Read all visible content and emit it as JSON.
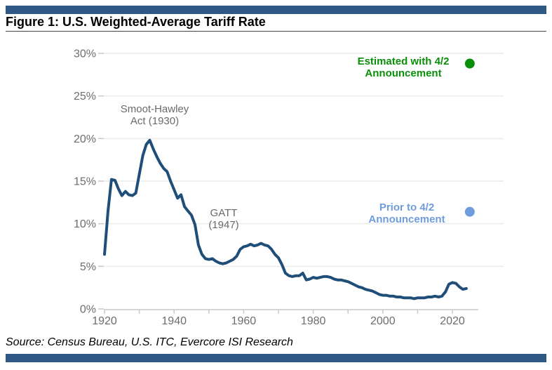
{
  "header": {
    "title": "Figure 1: U.S. Weighted-Average Tariff Rate"
  },
  "footer": {
    "source": "Source: Census Bureau, U.S. ITC, Evercore ISI Research"
  },
  "colors": {
    "divider_bar": "#2e5984",
    "line": "#1f4e79",
    "green": "#0a8f0a",
    "light_blue": "#6f9cdd",
    "gridline": "#ececec",
    "axis": "#c9c9c9",
    "label_gray": "#6d6d6d"
  },
  "chart_data": {
    "type": "line",
    "title": "U.S. Weighted-Average Tariff Rate",
    "x_axis": {
      "range": [
        1920,
        2027
      ],
      "tick_years": [
        1920,
        1930,
        1940,
        1950,
        1960,
        1970,
        1980,
        1990,
        2000,
        2010,
        2020
      ],
      "label_years": [
        1920,
        1940,
        1960,
        1980,
        2000,
        2020
      ],
      "labels": [
        "1920",
        "1940",
        "1960",
        "1980",
        "2000",
        "2020"
      ]
    },
    "y_axis": {
      "unit": "%",
      "range": [
        0,
        30
      ],
      "ticks": [
        0,
        5,
        10,
        15,
        20,
        25,
        30
      ],
      "tick_labels": [
        "0%",
        "5%",
        "10%",
        "15%",
        "20%",
        "25%",
        "30%"
      ],
      "gridlines": [
        5,
        10,
        15,
        20,
        25,
        30
      ]
    },
    "series": [
      {
        "name": "U.S. weighted-average tariff rate",
        "color": "#1f4e79",
        "years": [
          1920,
          1921,
          1922,
          1923,
          1924,
          1925,
          1926,
          1927,
          1928,
          1929,
          1930,
          1931,
          1932,
          1933,
          1934,
          1935,
          1936,
          1937,
          1938,
          1939,
          1940,
          1941,
          1942,
          1943,
          1944,
          1945,
          1946,
          1947,
          1948,
          1949,
          1950,
          1951,
          1952,
          1953,
          1954,
          1955,
          1956,
          1957,
          1958,
          1959,
          1960,
          1961,
          1962,
          1963,
          1964,
          1965,
          1966,
          1967,
          1968,
          1969,
          1970,
          1971,
          1972,
          1973,
          1974,
          1975,
          1976,
          1977,
          1978,
          1979,
          1980,
          1981,
          1982,
          1983,
          1984,
          1985,
          1986,
          1987,
          1988,
          1989,
          1990,
          1991,
          1992,
          1993,
          1994,
          1995,
          1996,
          1997,
          1998,
          1999,
          2000,
          2001,
          2002,
          2003,
          2004,
          2005,
          2006,
          2007,
          2008,
          2009,
          2010,
          2011,
          2012,
          2013,
          2014,
          2015,
          2016,
          2017,
          2018,
          2019,
          2020,
          2021,
          2022,
          2023,
          2024
        ],
        "values": [
          6.4,
          11.5,
          15.2,
          15.1,
          14.1,
          13.3,
          13.8,
          13.4,
          13.3,
          13.6,
          15.8,
          18.0,
          19.3,
          19.8,
          18.8,
          17.9,
          17.1,
          16.5,
          16.1,
          15.0,
          14.0,
          13.0,
          13.4,
          12.0,
          11.5,
          11.0,
          9.9,
          7.5,
          6.4,
          5.9,
          5.8,
          5.9,
          5.6,
          5.4,
          5.3,
          5.4,
          5.6,
          5.8,
          6.2,
          7.0,
          7.3,
          7.4,
          7.6,
          7.4,
          7.5,
          7.7,
          7.5,
          7.4,
          7.0,
          6.4,
          6.0,
          5.2,
          4.2,
          3.9,
          3.8,
          3.9,
          3.9,
          4.2,
          3.4,
          3.5,
          3.7,
          3.6,
          3.7,
          3.8,
          3.8,
          3.7,
          3.5,
          3.4,
          3.4,
          3.3,
          3.2,
          3.0,
          2.8,
          2.6,
          2.5,
          2.3,
          2.2,
          2.1,
          1.9,
          1.7,
          1.6,
          1.6,
          1.5,
          1.5,
          1.4,
          1.4,
          1.3,
          1.3,
          1.3,
          1.2,
          1.3,
          1.3,
          1.3,
          1.4,
          1.4,
          1.5,
          1.4,
          1.5,
          2.0,
          2.9,
          3.1,
          3.0,
          2.6,
          2.3,
          2.4
        ]
      }
    ],
    "markers": [
      {
        "name": "Prior to 4/2 Announcement",
        "year": 2025,
        "value": 11.4,
        "color": "#6f9cdd"
      },
      {
        "name": "Estimated with 4/2 Announcement",
        "year": 2025,
        "value": 28.8,
        "color": "#0a8f0a"
      }
    ],
    "annotations": {
      "smoot_hawley": {
        "text": "Smoot-Hawley\nAct (1930)"
      },
      "gatt": {
        "text": "GATT\n(1947)"
      },
      "estimated": {
        "text": "Estimated with 4/2\nAnnouncement"
      },
      "prior": {
        "text": "Prior to 4/2\nAnnouncement"
      }
    },
    "legend": "none",
    "grid": "horizontal-only"
  }
}
